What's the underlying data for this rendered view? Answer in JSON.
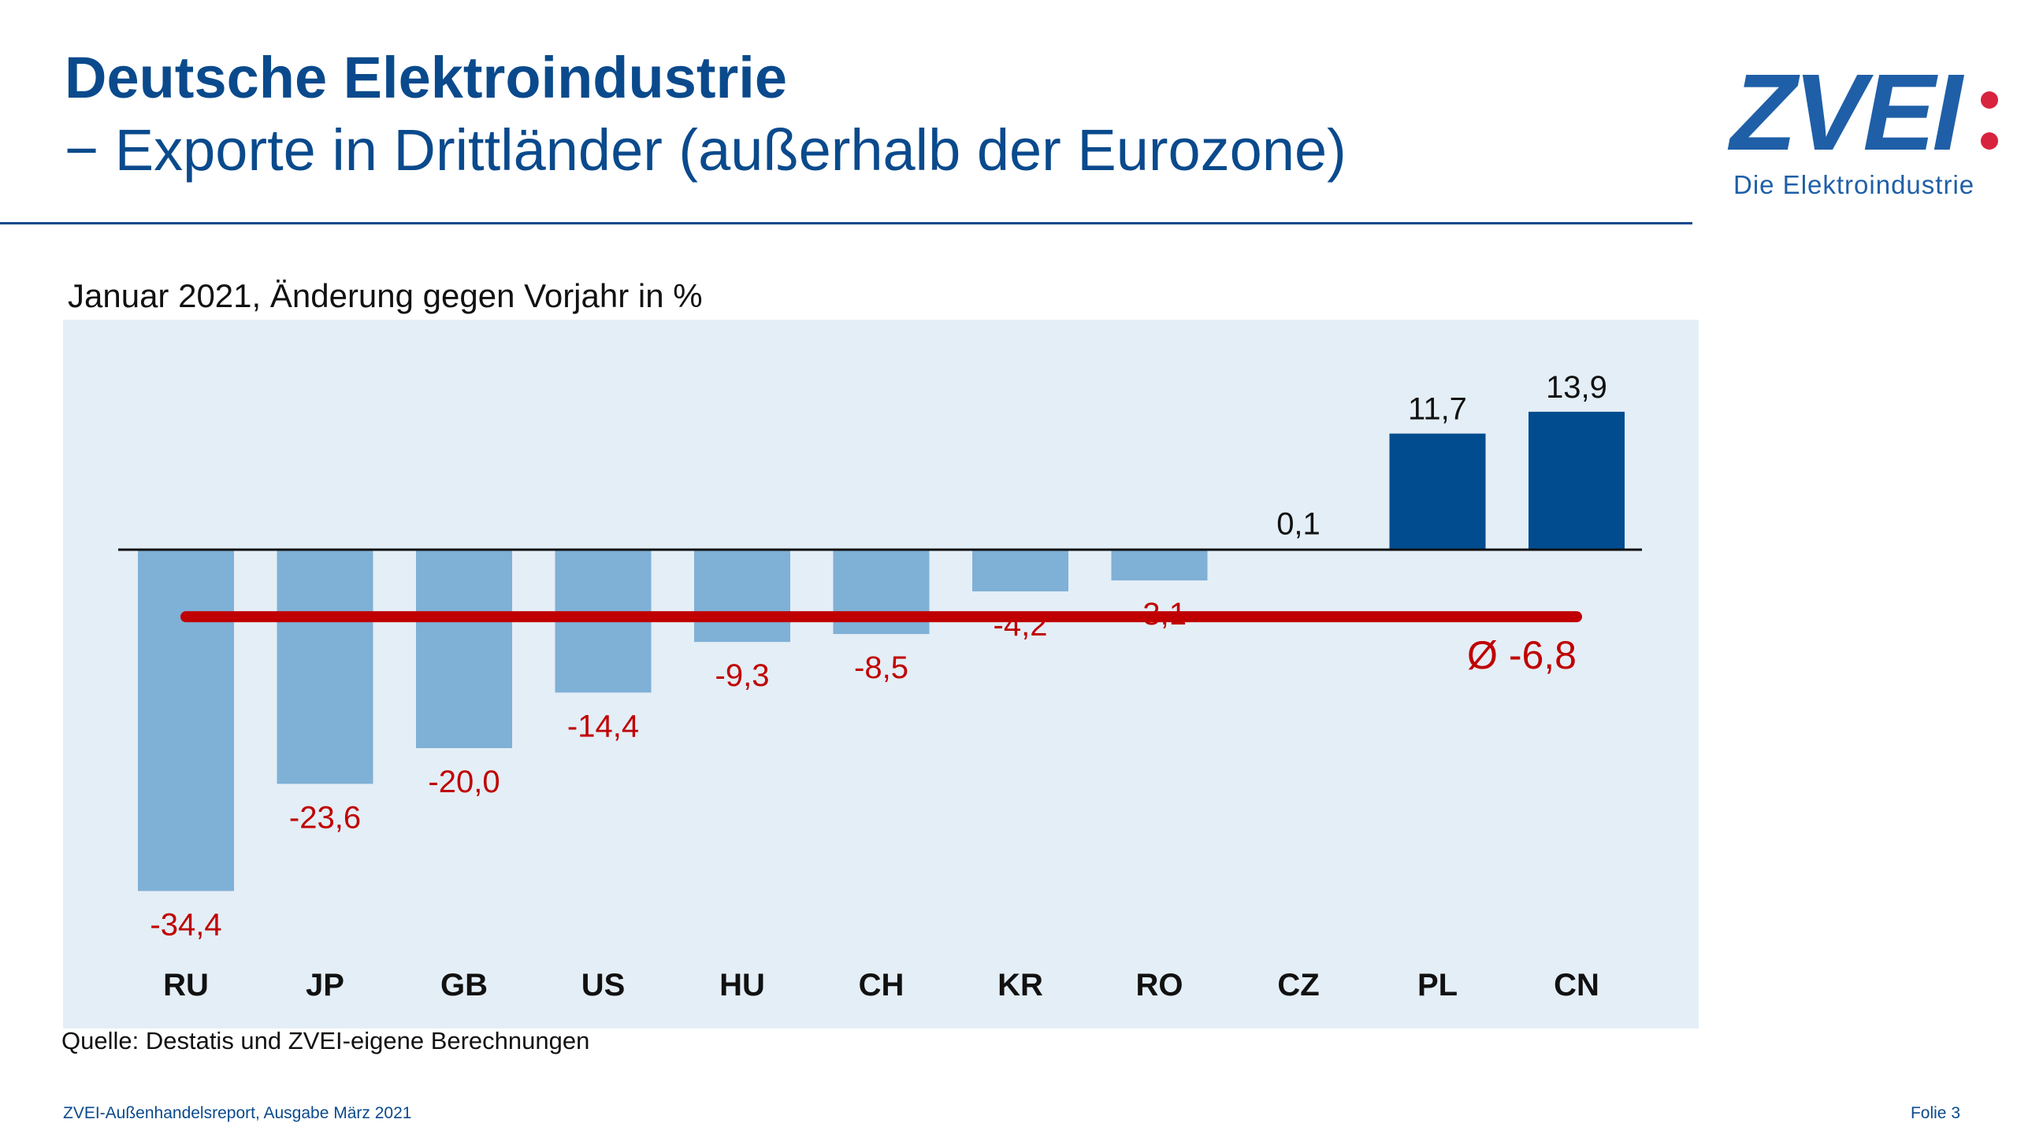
{
  "header": {
    "title": "Deutsche Elektroindustrie",
    "subtitle": "− Exporte in Drittländer (außerhalb der Eurozone)"
  },
  "logo": {
    "wordmark": "ZVEI",
    "tagline": "Die Elektroindustrie"
  },
  "chart_data": {
    "type": "bar",
    "title": "Januar 2021, Änderung gegen Vorjahr in %",
    "xlabel": "",
    "ylabel": "Änderung gegen Vorjahr in %",
    "categories": [
      "RU",
      "JP",
      "GB",
      "US",
      "HU",
      "CH",
      "KR",
      "RO",
      "CZ",
      "PL",
      "CN"
    ],
    "values": [
      -34.4,
      -23.6,
      -20.0,
      -14.4,
      -9.3,
      -8.5,
      -4.2,
      -3.1,
      0.1,
      11.7,
      13.9
    ],
    "value_labels": [
      "-34,4",
      "-23,6",
      "-20,0",
      "-14,4",
      "-9,3",
      "-8,5",
      "-4,2",
      "-3,1",
      "0,1",
      "11,7",
      "13,9"
    ],
    "highlighted_categories": [
      "PL",
      "CN"
    ],
    "average": {
      "value": -6.8,
      "label": "Ø -6,8"
    },
    "ylim": [
      -40,
      18
    ],
    "grid": false,
    "legend": "none"
  },
  "colors": {
    "title_blue": "#0a4a8c",
    "bar_negative": "#7fb0d6",
    "bar_highlight": "#004c8f",
    "label_negative": "#c00000",
    "average_line": "#c00000",
    "chart_background": "#e4eef6",
    "logo_blue": "#1f5fa8",
    "logo_red": "#d8233f"
  },
  "footer": {
    "source": "Quelle: Destatis und ZVEI-eigene Berechnungen",
    "publication": "ZVEI-Außenhandelsreport, Ausgabe März 2021",
    "page": "Folie 3"
  }
}
